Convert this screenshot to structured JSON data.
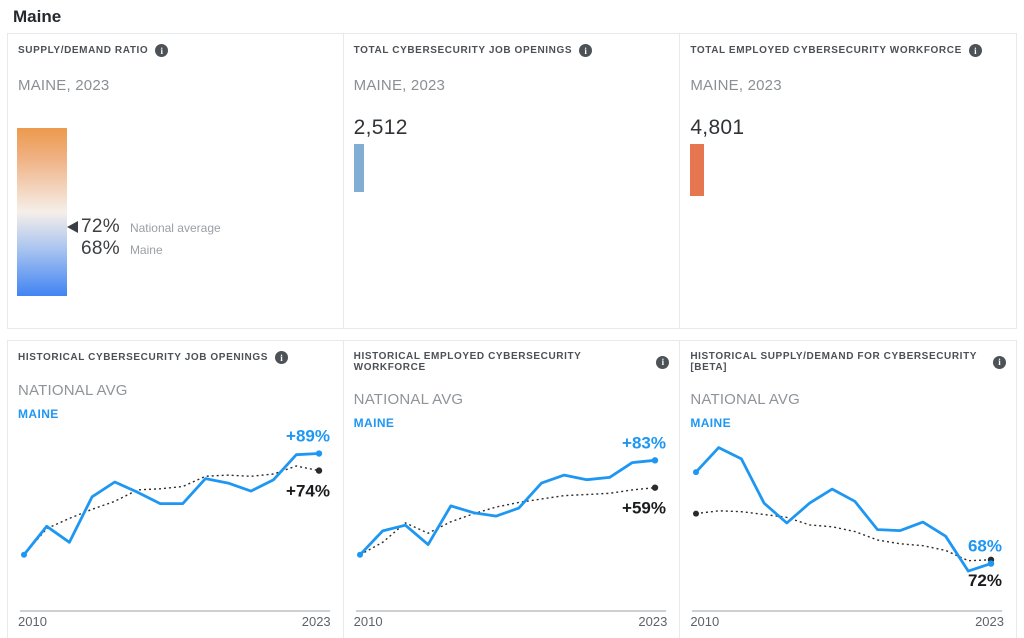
{
  "page": {
    "title": "Maine"
  },
  "colors": {
    "state_accent": "#1e97f3",
    "national_line": "#2b2b2b",
    "openings_bar": "#82aed3",
    "workforce_bar": "#e5764f",
    "gauge_top": "#ec9a4d",
    "gauge_bottom": "#4184f3",
    "panel_border": "#e7e9ea"
  },
  "panels": {
    "supply_demand": {
      "title": "SUPPLY/DEMAND RATIO",
      "info_icon": "info-icon",
      "subtitle": "MAINE, 2023",
      "national_value": "72%",
      "national_label": "National average",
      "state_value": "68%",
      "state_label": "Maine"
    },
    "job_openings": {
      "title": "TOTAL CYBERSECURITY JOB OPENINGS",
      "info_icon": "info-icon",
      "subtitle": "MAINE, 2023",
      "value": "2,512"
    },
    "workforce": {
      "title": "TOTAL EMPLOYED CYBERSECURITY WORKFORCE",
      "info_icon": "info-icon",
      "subtitle": "MAINE, 2023",
      "value": "4,801"
    }
  },
  "chart_data": [
    {
      "type": "line",
      "title": "HISTORICAL CYBERSECURITY JOB OPENINGS",
      "legend_national": "NATIONAL AVG",
      "legend_state": "MAINE",
      "x": [
        2010,
        2011,
        2012,
        2013,
        2014,
        2015,
        2016,
        2017,
        2018,
        2019,
        2020,
        2021,
        2022,
        2023
      ],
      "xlabel_start": "2010",
      "xlabel_end": "2023",
      "ylim": [
        84,
        200
      ],
      "grid": false,
      "series": [
        {
          "name": "National Avg",
          "style": "dotted",
          "color": "#2b2b2b",
          "start_dot": false,
          "end_label": "+74%",
          "values": [
            100,
            123,
            132,
            140,
            147,
            157,
            158,
            160,
            169,
            170,
            169,
            171,
            178,
            174
          ]
        },
        {
          "name": "Maine",
          "style": "solid",
          "color": "#1e97f3",
          "start_dot": true,
          "end_label": "+89%",
          "values": [
            100,
            125,
            111,
            151,
            164,
            155,
            145,
            145,
            167,
            163,
            156,
            166,
            188,
            189
          ]
        }
      ]
    },
    {
      "type": "line",
      "title": "HISTORICAL EMPLOYED CYBERSECURITY WORKFORCE",
      "legend_national": "NATIONAL AVG",
      "legend_state": "MAINE",
      "x": [
        2010,
        2011,
        2012,
        2013,
        2014,
        2015,
        2016,
        2017,
        2018,
        2019,
        2020,
        2021,
        2022,
        2023
      ],
      "xlabel_start": "2010",
      "xlabel_end": "2023",
      "ylim": [
        84,
        200
      ],
      "grid": false,
      "series": [
        {
          "name": "National Avg",
          "style": "dotted",
          "color": "#2b2b2b",
          "start_dot": false,
          "end_label": "+59%",
          "values": [
            100,
            111,
            128,
            119,
            129,
            136,
            142,
            146,
            149,
            152,
            153,
            154,
            157,
            159
          ]
        },
        {
          "name": "Maine",
          "style": "solid",
          "color": "#1e97f3",
          "start_dot": true,
          "end_label": "+83%",
          "values": [
            100,
            121,
            126,
            109,
            143,
            137,
            134,
            141,
            163,
            170,
            166,
            168,
            181,
            183
          ]
        }
      ]
    },
    {
      "type": "line",
      "title": "HISTORICAL SUPPLY/DEMAND FOR CYBERSECURITY [BETA]",
      "legend_national": "NATIONAL AVG",
      "legend_state": "MAINE",
      "x": [
        2010,
        2011,
        2012,
        2013,
        2014,
        2015,
        2016,
        2017,
        2018,
        2019,
        2020,
        2021,
        2022,
        2023
      ],
      "xlabel_start": "2010",
      "xlabel_end": "2023",
      "ylim": [
        58,
        198
      ],
      "grid": false,
      "series": [
        {
          "name": "National Avg",
          "style": "dotted",
          "color": "#2b2b2b",
          "start_dot": true,
          "end_label": "72%",
          "values": [
            121,
            124,
            123,
            120,
            117,
            109,
            107,
            102,
            93,
            89,
            87,
            82,
            71,
            72
          ]
        },
        {
          "name": "Maine",
          "style": "solid",
          "color": "#1e97f3",
          "start_dot": true,
          "end_label": "68%",
          "values": [
            165,
            191,
            179,
            132,
            111,
            132,
            147,
            134,
            104,
            103,
            112,
            97,
            60,
            68
          ]
        }
      ]
    }
  ]
}
